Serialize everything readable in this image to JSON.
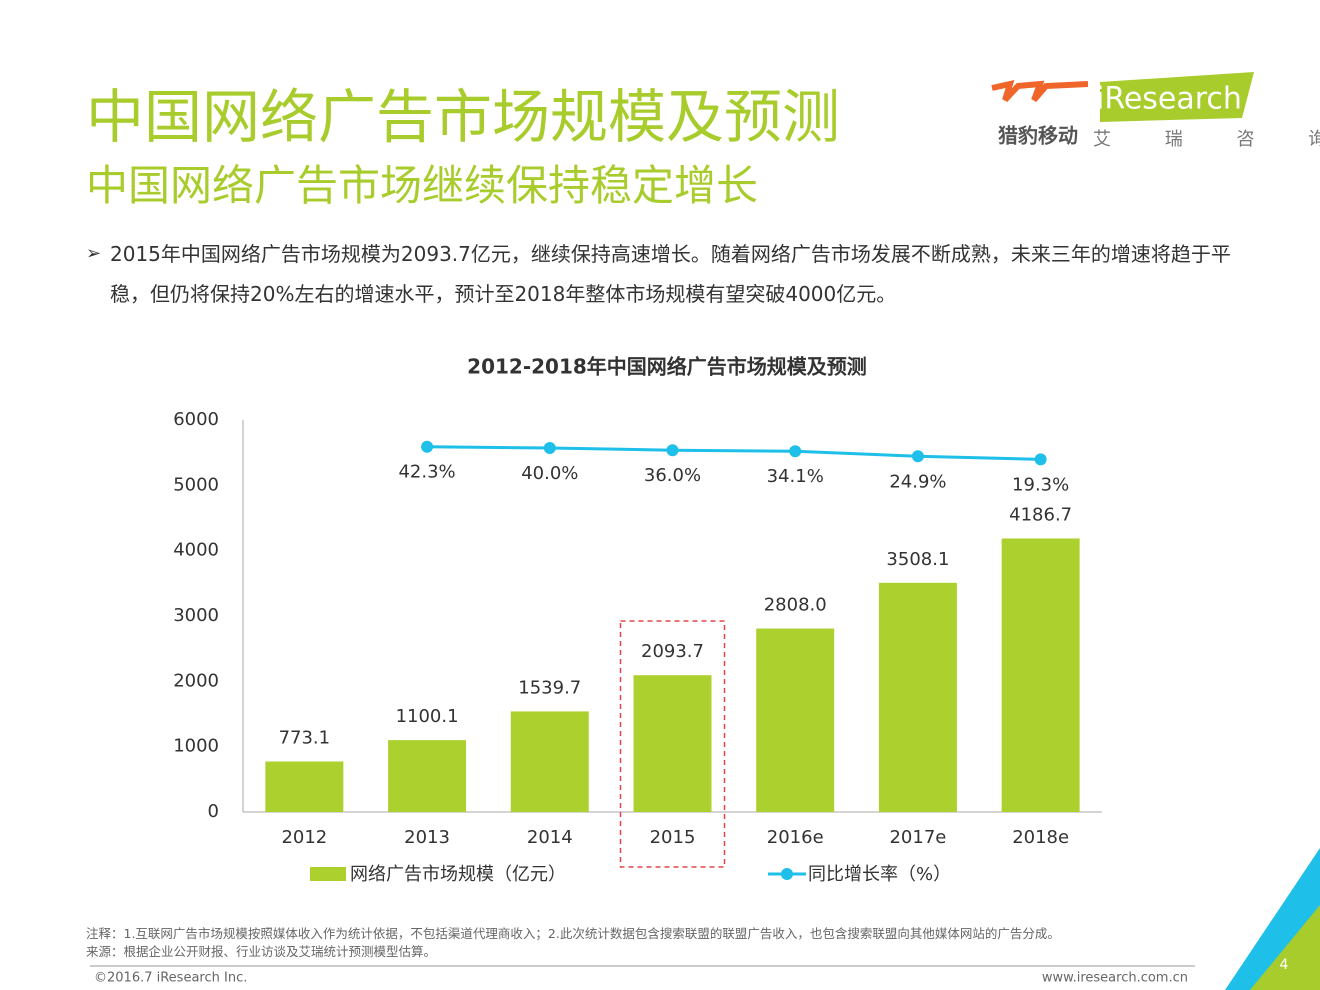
{
  "header": {
    "title": "中国网络广告市场规模及预测",
    "subtitle": "中国网络广告市场继续保持稳定增长",
    "logo_brand": "iResearch",
    "logo_partner": "猎豹移动",
    "logo_cn": "艾 瑞 咨 询"
  },
  "bullet": "2015年中国网络广告市场规模为2093.7亿元，继续保持高速增长。随着网络广告市场发展不断成熟，未来三年的增速将趋于平稳，但仍将保持20%左右的增速水平，预计至2018年整体市场规模有望突破4000亿元。",
  "chart_data": {
    "type": "bar",
    "title": "2012-2018年中国网络广告市场规模及预测",
    "categories": [
      "2012",
      "2013",
      "2014",
      "2015",
      "2016e",
      "2017e",
      "2018e"
    ],
    "series": [
      {
        "name": "网络广告市场规模（亿元）",
        "type": "bar",
        "color": "#acd12f",
        "values": [
          773.1,
          1100.1,
          1539.7,
          2093.7,
          2808,
          3508.1,
          4186.7
        ],
        "value_labels": [
          "773.1",
          "1100.1",
          "1539.7",
          "2093.7",
          "2808.0",
          "3508.1",
          "4186.7"
        ]
      },
      {
        "name": "同比增长率（%）",
        "type": "line",
        "color": "#1ebfe8",
        "values": [
          null,
          42.3,
          40,
          36,
          34.1,
          24.9,
          19.3
        ],
        "value_labels": [
          null,
          "42.3%",
          "40.0%",
          "36.0%",
          "34.1%",
          "24.9%",
          "19.3%"
        ]
      }
    ],
    "ylim": [
      0,
      6000
    ],
    "yticks": [
      0,
      1000,
      2000,
      3000,
      4000,
      5000,
      6000
    ],
    "grid": false
  },
  "notes": [
    "注释：1.互联网广告市场规模按照媒体收入作为统计依据，不包括渠道代理商收入；2.此次统计数据包含搜索联盟的联盟广告收入，也包含搜索联盟向其他媒体网站的广告分成。",
    "来源：根据企业公开财报、行业访谈及艾瑞统计预测模型估算。"
  ],
  "footer": {
    "copyright": "©2016.7 iResearch Inc.",
    "url": "www.iresearch.com.cn",
    "page": "4"
  }
}
